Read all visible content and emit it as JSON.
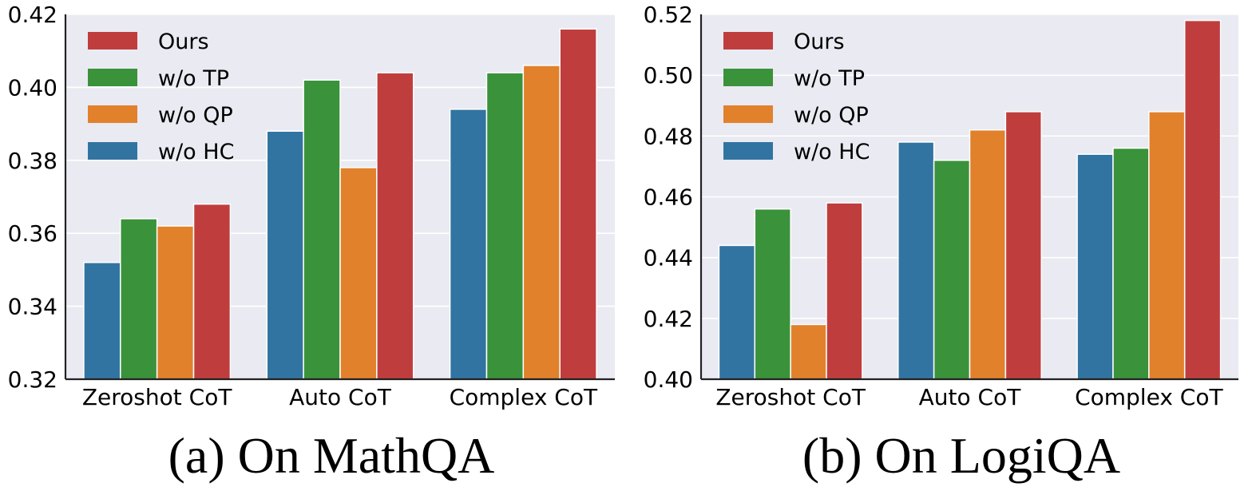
{
  "chart_data": [
    {
      "type": "bar",
      "caption": "(a) On MathQA",
      "categories": [
        "Zeroshot CoT",
        "Auto CoT",
        "Complex CoT"
      ],
      "series": [
        {
          "name": "w/o HC",
          "color": "#3274a1",
          "values": [
            0.352,
            0.388,
            0.394
          ]
        },
        {
          "name": "w/o TP",
          "color": "#3a923a",
          "values": [
            0.364,
            0.402,
            0.404
          ]
        },
        {
          "name": "w/o QP",
          "color": "#e1812c",
          "values": [
            0.362,
            0.378,
            0.406
          ]
        },
        {
          "name": "Ours",
          "color": "#c03d3e",
          "values": [
            0.368,
            0.404,
            0.416
          ]
        }
      ],
      "ylim": [
        0.32,
        0.42
      ],
      "yticks": [
        "0.32",
        "0.34",
        "0.36",
        "0.38",
        "0.40",
        "0.42"
      ],
      "legend_order": [
        "Ours",
        "w/o TP",
        "w/o QP",
        "w/o HC"
      ],
      "legend_position": "top-left",
      "grid": true,
      "background": "#eaeaf2"
    },
    {
      "type": "bar",
      "caption": "(b) On LogiQA",
      "categories": [
        "Zeroshot CoT",
        "Auto CoT",
        "Complex CoT"
      ],
      "series": [
        {
          "name": "w/o HC",
          "color": "#3274a1",
          "values": [
            0.444,
            0.478,
            0.474
          ]
        },
        {
          "name": "w/o TP",
          "color": "#3a923a",
          "values": [
            0.456,
            0.472,
            0.476
          ]
        },
        {
          "name": "w/o QP",
          "color": "#e1812c",
          "values": [
            0.418,
            0.482,
            0.488
          ]
        },
        {
          "name": "Ours",
          "color": "#c03d3e",
          "values": [
            0.458,
            0.488,
            0.518
          ]
        }
      ],
      "ylim": [
        0.4,
        0.52
      ],
      "yticks": [
        "0.40",
        "0.42",
        "0.44",
        "0.46",
        "0.48",
        "0.50",
        "0.52"
      ],
      "legend_order": [
        "Ours",
        "w/o TP",
        "w/o QP",
        "w/o HC"
      ],
      "legend_position": "top-left",
      "grid": true,
      "background": "#eaeaf2"
    }
  ]
}
